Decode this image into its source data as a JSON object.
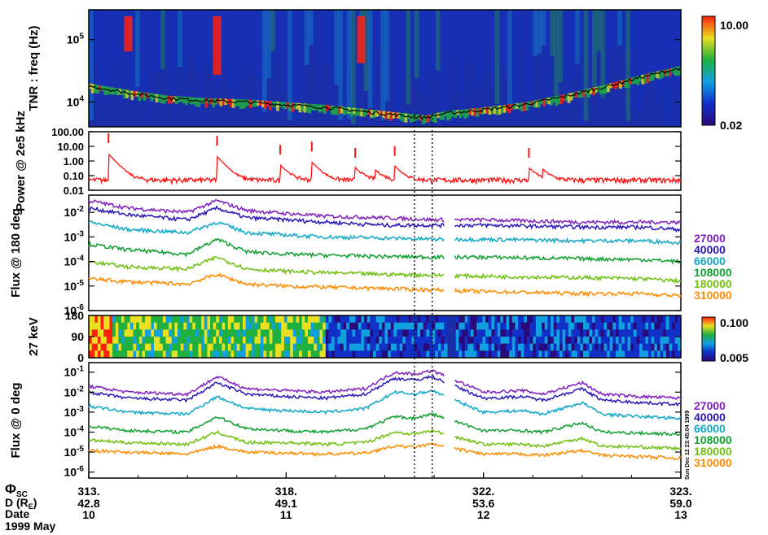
{
  "panels": {
    "tnr": {
      "ylabel": "TNR : freq (Hz)",
      "yticks": [
        {
          "v": 10000.0,
          "b": "10",
          "e": "4"
        },
        {
          "v": 100000.0,
          "b": "10",
          "e": "5"
        }
      ],
      "colorbar": {
        "max": "10.00",
        "min": "0.02",
        "colors": [
          "#2a0a7a",
          "#1030c8",
          "#10a0e0",
          "#20b040",
          "#e8e020",
          "#ff2010"
        ]
      }
    },
    "power": {
      "ylabel": "Power @ 2e5 kHz",
      "yticks": [
        "100.00",
        "10.00",
        "1.00",
        "0.10",
        "0.01"
      ],
      "color": "#ff1010"
    },
    "flux180": {
      "ylabel": "Flux @ 180 deg",
      "yticks": [
        {
          "b": "10",
          "e": "-2"
        },
        {
          "b": "10",
          "e": "-3"
        },
        {
          "b": "10",
          "e": "-4"
        },
        {
          "b": "10",
          "e": "-5"
        },
        {
          "b": "10",
          "e": "-6"
        }
      ]
    },
    "pitch": {
      "ylabel": "27 keV",
      "yticks": [
        "180",
        "90",
        "0"
      ],
      "colorbar": {
        "max": "0.100",
        "min": "0.005",
        "colors": [
          "#2a0a7a",
          "#1030c8",
          "#10a0e0",
          "#20b040",
          "#e8e020",
          "#ff2010"
        ]
      }
    },
    "flux0": {
      "ylabel": "Flux @ 0 deg",
      "yticks": [
        {
          "b": "10",
          "e": "-1"
        },
        {
          "b": "10",
          "e": "-2"
        },
        {
          "b": "10",
          "e": "-3"
        },
        {
          "b": "10",
          "e": "-4"
        },
        {
          "b": "10",
          "e": "-5"
        },
        {
          "b": "10",
          "e": "-6"
        }
      ]
    }
  },
  "energy_channels": [
    {
      "label": "27000",
      "color": "#8020c0"
    },
    {
      "label": "40000",
      "color": "#2818b8"
    },
    {
      "label": "66000",
      "color": "#10a8c8"
    },
    {
      "label": "108000",
      "color": "#10a030"
    },
    {
      "label": "180000",
      "color": "#70c010"
    },
    {
      "label": "310000",
      "color": "#ff8c00"
    }
  ],
  "time_axis": {
    "row_labels": {
      "phi_base": "Φ",
      "phi_sub": "SC",
      "dist": "D (R",
      "dist_sub": "E",
      "dist_close": ")",
      "date": "Date",
      "year": "1999 May"
    },
    "ticks": [
      {
        "x": 0.0,
        "phi": "313.",
        "dist": "42.8",
        "date": "10"
      },
      {
        "x": 1.0,
        "phi": "318.",
        "dist": "49.1",
        "date": "11"
      },
      {
        "x": 2.0,
        "phi": "322.",
        "dist": "53.6",
        "date": "12"
      },
      {
        "x": 3.0,
        "phi": "323.",
        "dist": "59.0",
        "date": "13"
      }
    ]
  },
  "markers": {
    "dotted_lines_x": [
      1.65,
      1.74
    ],
    "data_gap": [
      1.8,
      1.85
    ]
  },
  "timestamp": "Sun Dec 12 23:45:04 1999",
  "chart_data": [
    {
      "type": "heatmap",
      "name": "tnr",
      "xlim": [
        0,
        3
      ],
      "ylim": [
        4000,
        300000
      ],
      "log_y": true,
      "plasma_line": {
        "x": [
          0,
          0.2,
          0.4,
          0.6,
          0.8,
          1.0,
          1.2,
          1.4,
          1.6,
          1.7,
          1.8,
          2.0,
          2.2,
          2.4,
          2.6,
          2.8,
          3.0
        ],
        "y": [
          18000,
          14000,
          11500,
          10500,
          10000,
          9000,
          8200,
          7000,
          6000,
          5600,
          6500,
          7500,
          9000,
          12000,
          17000,
          25000,
          35000
        ]
      }
    },
    {
      "type": "line",
      "name": "power",
      "xlim": [
        0,
        3
      ],
      "ylim": [
        0.01,
        100
      ],
      "log_y": true,
      "baseline": 0.05,
      "peaks": [
        {
          "x": 0.1,
          "y": 3.0
        },
        {
          "x": 0.65,
          "y": 2.0
        },
        {
          "x": 0.97,
          "y": 0.5
        },
        {
          "x": 1.13,
          "y": 0.8
        },
        {
          "x": 1.35,
          "y": 0.3
        },
        {
          "x": 1.45,
          "y": 0.2
        },
        {
          "x": 1.55,
          "y": 0.4
        },
        {
          "x": 2.23,
          "y": 0.3
        },
        {
          "x": 2.3,
          "y": 0.2
        }
      ]
    },
    {
      "type": "line",
      "name": "flux_180deg",
      "xlim": [
        0,
        3
      ],
      "ylim": [
        1e-06,
        0.05
      ],
      "log_y": true,
      "x": [
        0,
        0.2,
        0.5,
        0.65,
        0.8,
        1.0,
        1.2,
        1.5,
        1.75,
        2.0,
        2.5,
        2.8,
        3.0
      ],
      "series": [
        {
          "name": "27000",
          "values": [
            0.03,
            0.015,
            0.01,
            0.03,
            0.012,
            0.009,
            0.007,
            0.006,
            0.005,
            0.005,
            0.004,
            0.004,
            0.004
          ]
        },
        {
          "name": "40000",
          "values": [
            0.015,
            0.008,
            0.005,
            0.015,
            0.006,
            0.005,
            0.004,
            0.003,
            0.003,
            0.003,
            0.0025,
            0.0025,
            0.002
          ]
        },
        {
          "name": "66000",
          "values": [
            0.004,
            0.002,
            0.0015,
            0.004,
            0.0015,
            0.0012,
            0.001,
            0.0009,
            0.0008,
            0.0008,
            0.0007,
            0.0007,
            0.0006
          ]
        },
        {
          "name": "108000",
          "values": [
            0.0005,
            0.0003,
            0.0002,
            0.0008,
            0.00025,
            0.0002,
            0.00018,
            0.00016,
            0.00015,
            0.00015,
            0.00013,
            0.00012,
            0.0001
          ]
        },
        {
          "name": "180000",
          "values": [
            0.0001,
            6e-05,
            5e-05,
            0.00015,
            5e-05,
            4e-05,
            3.5e-05,
            3e-05,
            2.8e-05,
            2.5e-05,
            2.2e-05,
            2e-05,
            1.6e-05
          ]
        },
        {
          "name": "310000",
          "values": [
            2e-05,
            1.5e-05,
            1.2e-05,
            3e-05,
            1.2e-05,
            1e-05,
            9e-06,
            8e-06,
            7e-06,
            6e-06,
            5e-06,
            5e-06,
            4e-06
          ]
        }
      ]
    },
    {
      "type": "heatmap",
      "name": "pitch_angle_27keV",
      "xlim": [
        0,
        3
      ],
      "ylim": [
        0,
        180
      ]
    },
    {
      "type": "line",
      "name": "flux_0deg",
      "xlim": [
        0,
        3
      ],
      "ylim": [
        5e-07,
        0.3
      ],
      "log_y": true,
      "x": [
        0,
        0.2,
        0.5,
        0.65,
        0.8,
        1.0,
        1.2,
        1.4,
        1.55,
        1.65,
        1.74,
        2.0,
        2.2,
        2.3,
        2.5,
        2.6,
        2.8,
        3.0
      ],
      "series": [
        {
          "name": "27000",
          "values": [
            0.02,
            0.01,
            0.008,
            0.06,
            0.015,
            0.012,
            0.01,
            0.015,
            0.1,
            0.08,
            0.12,
            0.01,
            0.012,
            0.008,
            0.03,
            0.008,
            0.006,
            0.005
          ]
        },
        {
          "name": "40000",
          "values": [
            0.01,
            0.005,
            0.004,
            0.03,
            0.008,
            0.006,
            0.005,
            0.008,
            0.05,
            0.04,
            0.06,
            0.005,
            0.006,
            0.004,
            0.015,
            0.004,
            0.003,
            0.0025
          ]
        },
        {
          "name": "66000",
          "values": [
            0.002,
            0.001,
            0.0008,
            0.006,
            0.0015,
            0.0012,
            0.001,
            0.0015,
            0.01,
            0.008,
            0.012,
            0.001,
            0.0012,
            0.0008,
            0.003,
            0.0008,
            0.0006,
            0.0005
          ]
        },
        {
          "name": "108000",
          "values": [
            0.0002,
            0.00012,
            0.0001,
            0.0006,
            0.00015,
            0.00012,
            0.0001,
            0.00015,
            0.0006,
            0.0005,
            0.0008,
            0.00012,
            0.00012,
            0.0001,
            0.0003,
            0.0001,
            9e-05,
            8e-05
          ]
        },
        {
          "name": "180000",
          "values": [
            4e-05,
            3e-05,
            2.5e-05,
            0.0001,
            3e-05,
            3e-05,
            2.5e-05,
            3e-05,
            0.0001,
            8e-05,
            0.00012,
            2.5e-05,
            2.5e-05,
            2e-05,
            5e-05,
            2e-05,
            1.8e-05,
            1.5e-05
          ]
        },
        {
          "name": "310000",
          "values": [
            1.2e-05,
            1e-05,
            8e-06,
            2e-05,
            1e-05,
            9e-06,
            8e-06,
            9e-06,
            2e-05,
            1.8e-05,
            2.5e-05,
            8e-06,
            8e-06,
            7e-06,
            1.2e-05,
            7e-06,
            6e-06,
            5e-06
          ]
        }
      ]
    }
  ]
}
